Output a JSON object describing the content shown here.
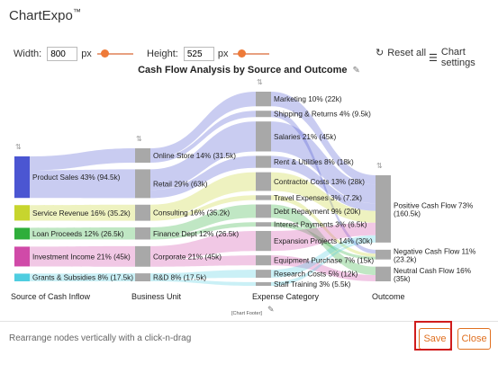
{
  "app": {
    "title": "ChartExpo",
    "trademark": "™"
  },
  "controls": {
    "width_label": "Width:",
    "width_value": "800",
    "width_unit": "px",
    "width_slider_fraction": 0.15,
    "height_label": "Height:",
    "height_value": "525",
    "height_unit": "px",
    "height_slider_fraction": 0.15,
    "reset_label": "Reset all",
    "settings_label": "Chart settings"
  },
  "footer_note": "[Chart Footer]",
  "hint": "Rearrange nodes vertically with a click-n-drag",
  "buttons": {
    "save": "Save",
    "close": "Close"
  },
  "colors": {
    "accent": "#e07020",
    "highlight": "#d01c1c"
  },
  "chart_data": {
    "type": "sankey",
    "title": "Cash Flow Analysis by Source and Outcome",
    "columns": [
      "Source of Cash Inflow",
      "Business Unit",
      "Expense Category",
      "Outcome"
    ],
    "nodes": [
      {
        "id": "ps",
        "label": "Product Sales 43% (94.5k)",
        "column": 0,
        "value": 94.5,
        "color": "#4b56d2"
      },
      {
        "id": "sr",
        "label": "Service Revenue 16% (35.2k)",
        "column": 0,
        "value": 35.2,
        "color": "#c7d52e"
      },
      {
        "id": "lp",
        "label": "Loan Proceeds 12% (26.5k)",
        "column": 0,
        "value": 26.5,
        "color": "#2fae3b"
      },
      {
        "id": "ii",
        "label": "Investment Income 21% (45k)",
        "column": 0,
        "value": 45,
        "color": "#d04aa8"
      },
      {
        "id": "gs",
        "label": "Grants & Subsidies 8% (17.5k)",
        "column": 0,
        "value": 17.5,
        "color": "#4fcde0"
      },
      {
        "id": "os",
        "label": "Online Store 14% (31.5k)",
        "column": 1,
        "value": 31.5,
        "color": "#a8a8a8"
      },
      {
        "id": "rt",
        "label": "Retail 29% (63k)",
        "column": 1,
        "value": 63,
        "color": "#a8a8a8"
      },
      {
        "id": "cs",
        "label": "Consulting 16% (35.2k)",
        "column": 1,
        "value": 35.2,
        "color": "#a8a8a8"
      },
      {
        "id": "fd",
        "label": "Finance Dept 12% (26.5k)",
        "column": 1,
        "value": 26.5,
        "color": "#a8a8a8"
      },
      {
        "id": "cp",
        "label": "Corporate 21% (45k)",
        "column": 1,
        "value": 45,
        "color": "#a8a8a8"
      },
      {
        "id": "rd",
        "label": "R&D 8% (17.5k)",
        "column": 1,
        "value": 17.5,
        "color": "#a8a8a8"
      },
      {
        "id": "mk",
        "label": "Marketing 10% (22k)",
        "column": 2,
        "value": 22,
        "color": "#a8a8a8"
      },
      {
        "id": "sh",
        "label": "Shipping & Returns 4% (9.5k)",
        "column": 2,
        "value": 9.5,
        "color": "#a8a8a8"
      },
      {
        "id": "sa",
        "label": "Salaries 21% (45k)",
        "column": 2,
        "value": 45,
        "color": "#a8a8a8"
      },
      {
        "id": "ru",
        "label": "Rent & Utilities 8% (18k)",
        "column": 2,
        "value": 18,
        "color": "#a8a8a8"
      },
      {
        "id": "cc",
        "label": "Contractor Costs 13% (28k)",
        "column": 2,
        "value": 28,
        "color": "#a8a8a8"
      },
      {
        "id": "te",
        "label": "Travel Expenses 3% (7.2k)",
        "column": 2,
        "value": 7.2,
        "color": "#a8a8a8"
      },
      {
        "id": "dr",
        "label": "Debt Repayment 9% (20k)",
        "column": 2,
        "value": 20,
        "color": "#a8a8a8"
      },
      {
        "id": "ip",
        "label": "Interest Payments 3% (6.5k)",
        "column": 2,
        "value": 6.5,
        "color": "#a8a8a8"
      },
      {
        "id": "ep",
        "label": "Expansion Projects 14% (30k)",
        "column": 2,
        "value": 30,
        "color": "#a8a8a8"
      },
      {
        "id": "eq",
        "label": "Equipment Purchase 7% (15k)",
        "column": 2,
        "value": 15,
        "color": "#a8a8a8"
      },
      {
        "id": "rc",
        "label": "Research Costs 5% (12k)",
        "column": 2,
        "value": 12,
        "color": "#a8a8a8"
      },
      {
        "id": "st",
        "label": "Staff Training 3% (5.5k)",
        "column": 2,
        "value": 5.5,
        "color": "#a8a8a8"
      },
      {
        "id": "pos",
        "label": "Positive Cash Flow 73% (160.5k)",
        "column": 3,
        "value": 160.5,
        "color": "#a8a8a8"
      },
      {
        "id": "neg",
        "label": "Negative Cash Flow 11% (23.2k)",
        "column": 3,
        "value": 23.2,
        "color": "#a8a8a8"
      },
      {
        "id": "neu",
        "label": "Neutral Cash Flow 16% (35k)",
        "column": 3,
        "value": 35,
        "color": "#a8a8a8"
      }
    ],
    "links": [
      {
        "source": "ps",
        "target": "os",
        "value": 31.5
      },
      {
        "source": "ps",
        "target": "rt",
        "value": 63
      },
      {
        "source": "sr",
        "target": "cs",
        "value": 35.2
      },
      {
        "source": "lp",
        "target": "fd",
        "value": 26.5
      },
      {
        "source": "ii",
        "target": "cp",
        "value": 45
      },
      {
        "source": "gs",
        "target": "rd",
        "value": 17.5
      },
      {
        "source": "os",
        "target": "mk",
        "value": 22
      },
      {
        "source": "os",
        "target": "sh",
        "value": 9.5
      },
      {
        "source": "rt",
        "target": "sa",
        "value": 45
      },
      {
        "source": "rt",
        "target": "ru",
        "value": 18
      },
      {
        "source": "cs",
        "target": "cc",
        "value": 28
      },
      {
        "source": "cs",
        "target": "te",
        "value": 7.2
      },
      {
        "source": "fd",
        "target": "dr",
        "value": 20
      },
      {
        "source": "fd",
        "target": "ip",
        "value": 6.5
      },
      {
        "source": "cp",
        "target": "ep",
        "value": 30
      },
      {
        "source": "cp",
        "target": "eq",
        "value": 15
      },
      {
        "source": "rd",
        "target": "rc",
        "value": 12
      },
      {
        "source": "rd",
        "target": "st",
        "value": 5.5
      },
      {
        "source": "mk",
        "target": "pos",
        "value": 22
      },
      {
        "source": "sh",
        "target": "neg",
        "value": 9.5
      },
      {
        "source": "sa",
        "target": "pos",
        "value": 45
      },
      {
        "source": "ru",
        "target": "pos",
        "value": 18
      },
      {
        "source": "cc",
        "target": "pos",
        "value": 28
      },
      {
        "source": "te",
        "target": "neg",
        "value": 7.2
      },
      {
        "source": "dr",
        "target": "neu",
        "value": 20
      },
      {
        "source": "ip",
        "target": "neg",
        "value": 6.5
      },
      {
        "source": "ep",
        "target": "pos",
        "value": 30
      },
      {
        "source": "eq",
        "target": "neu",
        "value": 15
      },
      {
        "source": "rc",
        "target": "pos",
        "value": 12
      },
      {
        "source": "st",
        "target": "pos",
        "value": 5.5
      }
    ]
  }
}
